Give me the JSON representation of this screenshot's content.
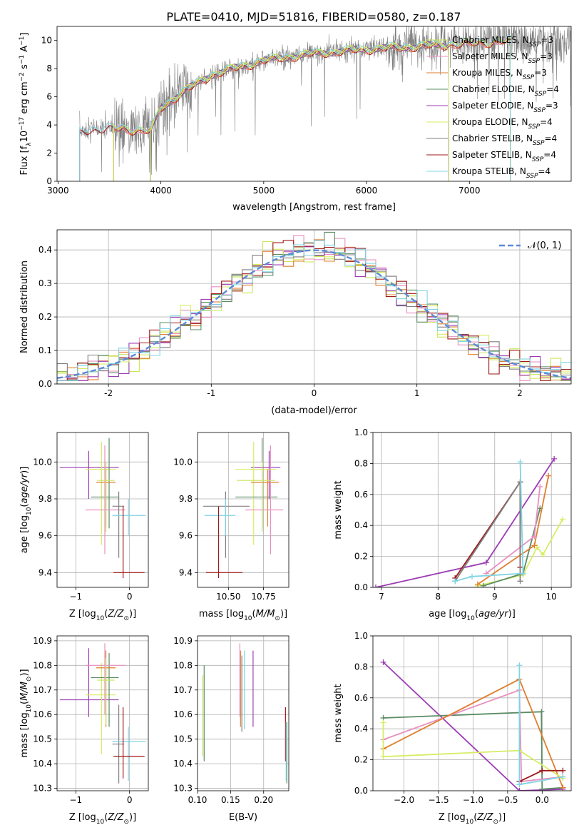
{
  "figure_title": "PLATE=0410, MJD=51816, FIBERID=0580, z=0.187",
  "colors": {
    "chabrier_miles": "#c8e65a",
    "salpeter_miles": "#e88fc0",
    "kroupa_miles": "#e07e2e",
    "chabrier_elodie": "#5a8c64",
    "salpeter_elodie": "#9c3cb4",
    "kroupa_elodie": "#d8ec64",
    "chabrier_stelib": "#7f7f7f",
    "salpeter_stelib": "#a01818",
    "kroupa_stelib": "#80d4e4",
    "gaussian": "#5a8ad8"
  },
  "chart_data": [
    {
      "id": "spectrum",
      "type": "line",
      "xlabel": "wavelength [Angstrom, rest frame]",
      "ylabel": "Flux [f",
      "xlim": [
        2990,
        7990
      ],
      "ylim": [
        0,
        11
      ],
      "xticks": [
        3000,
        4000,
        5000,
        6000,
        7000
      ],
      "yticks": [
        0,
        2,
        4,
        6,
        8,
        10
      ],
      "grid": false,
      "legend_position": "top-right",
      "legend": [
        {
          "key": "chabrier_stelib_line",
          "label": "Chabrier MILES, N",
          "sub": "SSP",
          "suffix": "=3",
          "color": "chabrier_miles"
        },
        {
          "key": "salpeter_miles",
          "label": "Salpeter MILES, N",
          "sub": "SSP",
          "suffix": "=3",
          "color": "salpeter_miles"
        },
        {
          "key": "kroupa_miles",
          "label": "Kroupa MILES, N",
          "sub": "SSP",
          "suffix": "=3",
          "color": "kroupa_miles"
        },
        {
          "key": "chabrier_elodie",
          "label": "Chabrier ELODIE, N",
          "sub": "SSP",
          "suffix": "=4",
          "color": "chabrier_elodie"
        },
        {
          "key": "salpeter_elodie",
          "label": "Salpeter ELODIE, N",
          "sub": "SSP",
          "suffix": "=3",
          "color": "salpeter_elodie"
        },
        {
          "key": "kroupa_elodie",
          "label": "Kroupa ELODIE, N",
          "sub": "SSP",
          "suffix": "=4",
          "color": "kroupa_elodie"
        },
        {
          "key": "chabrier_stelib",
          "label": "Chabrier STELIB, N",
          "sub": "SSP",
          "suffix": "=4",
          "color": "chabrier_stelib"
        },
        {
          "key": "salpeter_stelib",
          "label": "Salpeter STELIB, N",
          "sub": "SSP",
          "suffix": "=4",
          "color": "salpeter_stelib"
        },
        {
          "key": "kroupa_stelib",
          "label": "Kroupa STELIB, N",
          "sub": "SSP",
          "suffix": "=4",
          "color": "kroupa_stelib"
        }
      ],
      "continuum_points": [
        [
          3210,
          3.5
        ],
        [
          3300,
          3.7
        ],
        [
          3500,
          3.8
        ],
        [
          3700,
          3.7
        ],
        [
          3900,
          3.6
        ],
        [
          4000,
          5.2
        ],
        [
          4200,
          6.3
        ],
        [
          4500,
          7.6
        ],
        [
          5000,
          8.6
        ],
        [
          5500,
          9.1
        ],
        [
          6000,
          9.4
        ],
        [
          6500,
          9.6
        ],
        [
          7000,
          9.8
        ],
        [
          7400,
          10.0
        ],
        [
          7990,
          10.0
        ]
      ],
      "model_ranges": {
        "chabrier_miles": [
          3540,
          7400
        ],
        "salpeter_miles": [
          3540,
          7400
        ],
        "kroupa_miles": [
          3540,
          7400
        ],
        "chabrier_elodie": [
          3900,
          6800
        ],
        "salpeter_elodie": [
          3900,
          6800
        ],
        "kroupa_elodie": [
          3900,
          6800
        ],
        "chabrier_stelib": [
          3210,
          7990
        ],
        "salpeter_stelib": [
          3210,
          7400
        ],
        "kroupa_stelib": [
          3210,
          7400
        ]
      }
    },
    {
      "id": "residuals",
      "type": "histogram",
      "xlabel": "(data-model)/error",
      "ylabel": "Normed distribution",
      "xlim": [
        -2.5,
        2.5
      ],
      "ylim": [
        0,
        0.46
      ],
      "xticks": [
        -2,
        -1,
        0,
        1,
        2
      ],
      "yticks": [
        0.0,
        0.1,
        0.2,
        0.3,
        0.4
      ],
      "grid": true,
      "legend_position": "top-right",
      "gaussian_label": "𝒩(0, 1)",
      "bin_width": 0.1
    },
    {
      "id": "age_vs_Z",
      "type": "errorbar",
      "xlabel": "Z [log",
      "ylabel": "age  [log",
      "xlim": [
        -1.35,
        0.35
      ],
      "ylim": [
        9.32,
        10.16
      ],
      "xticks": [
        -1,
        0
      ],
      "xticklabels": [
        "−1",
        "0"
      ],
      "yticks": [
        9.4,
        9.6,
        9.8,
        10.0
      ],
      "grid": true,
      "points": [
        {
          "color": "salpeter_elodie",
          "x": -0.76,
          "xlo": -1.3,
          "xhi": -0.2,
          "y": 9.97,
          "ylo": 9.8,
          "yhi": 10.06
        },
        {
          "color": "kroupa_elodie",
          "x": -0.52,
          "xlo": -0.82,
          "xhi": -0.26,
          "y": 9.96,
          "ylo": 9.55,
          "yhi": 10.11
        },
        {
          "color": "chabrier_elodie",
          "x": -0.38,
          "xlo": -0.72,
          "xhi": -0.2,
          "y": 9.81,
          "ylo": 9.64,
          "yhi": 10.13
        },
        {
          "color": "kroupa_miles",
          "x": -0.44,
          "xlo": -0.62,
          "xhi": -0.26,
          "y": 9.89,
          "ylo": 9.65,
          "yhi": 9.96
        },
        {
          "color": "salpeter_miles",
          "x": -0.46,
          "xlo": -0.82,
          "xhi": -0.08,
          "y": 9.74,
          "ylo": 9.5,
          "yhi": 10.09
        },
        {
          "color": "chabrier_miles",
          "x": -0.44,
          "xlo": -0.6,
          "xhi": -0.28,
          "y": 9.9,
          "ylo": 9.62,
          "yhi": 10.0
        },
        {
          "color": "chabrier_stelib",
          "x": -0.2,
          "xlo": -0.32,
          "xhi": -0.1,
          "y": 9.76,
          "ylo": 9.48,
          "yhi": 9.84
        },
        {
          "color": "kroupa_stelib",
          "x": -0.02,
          "xlo": -0.32,
          "xhi": 0.3,
          "y": 9.71,
          "ylo": 9.6,
          "yhi": 9.8
        },
        {
          "color": "salpeter_stelib",
          "x": -0.12,
          "xlo": -0.3,
          "xhi": 0.28,
          "y": 9.4,
          "ylo": 9.37,
          "yhi": 9.76
        }
      ]
    },
    {
      "id": "age_vs_mass",
      "type": "errorbar",
      "xlabel": "mass [log",
      "xlim": [
        10.28,
        10.93
      ],
      "ylim": [
        9.32,
        10.16
      ],
      "xticks": [
        10.5,
        10.75
      ],
      "xticklabels": [
        "10.50",
        "10.75"
      ],
      "yticks": [
        9.4,
        9.6,
        9.8,
        10.0
      ],
      "grid": true,
      "points": [
        {
          "color": "salpeter_elodie",
          "x": 10.79,
          "xlo": 10.66,
          "xhi": 10.87,
          "y": 9.97,
          "ylo": 9.8,
          "yhi": 10.06
        },
        {
          "color": "kroupa_elodie",
          "x": 10.68,
          "xlo": 10.55,
          "xhi": 10.84,
          "y": 9.96,
          "ylo": 9.55,
          "yhi": 10.11
        },
        {
          "color": "chabrier_elodie",
          "x": 10.74,
          "xlo": 10.55,
          "xhi": 10.85,
          "y": 9.81,
          "ylo": 9.64,
          "yhi": 10.13
        },
        {
          "color": "kroupa_miles",
          "x": 10.78,
          "xlo": 10.66,
          "xhi": 10.86,
          "y": 9.89,
          "ylo": 9.65,
          "yhi": 9.96
        },
        {
          "color": "salpeter_miles",
          "x": 10.8,
          "xlo": 10.62,
          "xhi": 10.89,
          "y": 9.74,
          "ylo": 9.5,
          "yhi": 10.09
        },
        {
          "color": "chabrier_miles",
          "x": 10.74,
          "xlo": 10.56,
          "xhi": 10.83,
          "y": 9.9,
          "ylo": 9.62,
          "yhi": 10.0
        },
        {
          "color": "chabrier_stelib",
          "x": 10.48,
          "xlo": 10.32,
          "xhi": 10.65,
          "y": 9.76,
          "ylo": 9.48,
          "yhi": 9.84
        },
        {
          "color": "kroupa_stelib",
          "x": 10.48,
          "xlo": 10.33,
          "xhi": 10.55,
          "y": 9.71,
          "ylo": 9.6,
          "yhi": 9.8
        },
        {
          "color": "salpeter_stelib",
          "x": 10.43,
          "xlo": 10.34,
          "xhi": 10.6,
          "y": 9.4,
          "ylo": 9.37,
          "yhi": 9.76
        }
      ]
    },
    {
      "id": "weight_vs_age",
      "type": "line",
      "xlabel": "age  [log",
      "ylabel": "mass weight",
      "xlim": [
        6.85,
        10.35
      ],
      "ylim": [
        0,
        1
      ],
      "xticks": [
        7,
        8,
        9,
        10
      ],
      "yticks": [
        0.0,
        0.2,
        0.4,
        0.6,
        0.8,
        1.0
      ],
      "grid": true,
      "series": [
        {
          "color": "salpeter_elodie",
          "points": [
            [
              6.9,
              0.0
            ],
            [
              8.85,
              0.16
            ],
            [
              10.05,
              0.83
            ]
          ]
        },
        {
          "color": "kroupa_elodie",
          "points": [
            [
              8.7,
              0.01
            ],
            [
              9.5,
              0.08
            ],
            [
              9.75,
              0.26
            ],
            [
              9.85,
              0.21
            ],
            [
              10.2,
              0.44
            ]
          ]
        },
        {
          "color": "chabrier_elodie",
          "points": [
            [
              8.8,
              0.01
            ],
            [
              9.5,
              0.09
            ],
            [
              9.8,
              0.51
            ]
          ]
        },
        {
          "color": "kroupa_miles",
          "points": [
            [
              8.7,
              0.02
            ],
            [
              9.7,
              0.27
            ],
            [
              9.95,
              0.72
            ]
          ]
        },
        {
          "color": "salpeter_miles",
          "points": [
            [
              8.85,
              0.09
            ],
            [
              9.7,
              0.33
            ],
            [
              9.8,
              0.65
            ]
          ]
        },
        {
          "color": "salpeter_stelib",
          "points": [
            [
              8.3,
              0.06
            ],
            [
              9.45,
              0.68
            ],
            [
              9.45,
              0.13
            ]
          ]
        },
        {
          "color": "chabrier_stelib",
          "points": [
            [
              8.3,
              0.04
            ],
            [
              9.45,
              0.68
            ],
            [
              9.45,
              0.04
            ]
          ]
        },
        {
          "color": "kroupa_stelib",
          "points": [
            [
              8.3,
              0.04
            ],
            [
              8.6,
              0.07
            ],
            [
              9.5,
              0.09
            ],
            [
              9.45,
              0.81
            ]
          ]
        }
      ]
    },
    {
      "id": "mass_vs_Z",
      "type": "errorbar",
      "xlabel": "Z [log",
      "ylabel": "mass [log",
      "xlim": [
        -1.35,
        0.35
      ],
      "ylim": [
        10.29,
        10.92
      ],
      "xticks": [
        -1,
        0
      ],
      "xticklabels": [
        "−1",
        "0"
      ],
      "yticks": [
        10.3,
        10.4,
        10.5,
        10.6,
        10.7,
        10.8,
        10.9
      ],
      "grid": true,
      "points": [
        {
          "color": "salpeter_elodie",
          "x": -0.76,
          "xlo": -1.3,
          "xhi": -0.2,
          "y": 10.66,
          "ylo": 10.59,
          "yhi": 10.87
        },
        {
          "color": "kroupa_elodie",
          "x": -0.52,
          "xlo": -0.82,
          "xhi": -0.26,
          "y": 10.68,
          "ylo": 10.44,
          "yhi": 10.81
        },
        {
          "color": "chabrier_elodie",
          "x": -0.38,
          "xlo": -0.72,
          "xhi": -0.2,
          "y": 10.75,
          "ylo": 10.55,
          "yhi": 10.85
        },
        {
          "color": "kroupa_miles",
          "x": -0.44,
          "xlo": -0.62,
          "xhi": -0.26,
          "y": 10.79,
          "ylo": 10.55,
          "yhi": 10.86
        },
        {
          "color": "salpeter_miles",
          "x": -0.46,
          "xlo": -0.82,
          "xhi": -0.08,
          "y": 10.8,
          "ylo": 10.6,
          "yhi": 10.89
        },
        {
          "color": "chabrier_miles",
          "x": -0.44,
          "xlo": -0.6,
          "xhi": -0.28,
          "y": 10.74,
          "ylo": 10.56,
          "yhi": 10.83
        },
        {
          "color": "chabrier_stelib",
          "x": -0.2,
          "xlo": -0.32,
          "xhi": -0.1,
          "y": 10.48,
          "ylo": 10.32,
          "yhi": 10.64
        },
        {
          "color": "kroupa_stelib",
          "x": -0.02,
          "xlo": -0.32,
          "xhi": 0.3,
          "y": 10.49,
          "ylo": 10.33,
          "yhi": 10.55
        },
        {
          "color": "salpeter_stelib",
          "x": -0.12,
          "xlo": -0.3,
          "xhi": 0.28,
          "y": 10.43,
          "ylo": 10.34,
          "yhi": 10.63
        }
      ]
    },
    {
      "id": "mass_vs_ebv",
      "type": "errorbar",
      "xlabel": "E(B-V)",
      "xlim": [
        0.1,
        0.238
      ],
      "ylim": [
        10.29,
        10.92
      ],
      "xticks": [
        0.1,
        0.15,
        0.2
      ],
      "xticklabels": [
        "0.10",
        "0.15",
        "0.20"
      ],
      "yticks": [
        10.3,
        10.4,
        10.5,
        10.6,
        10.7,
        10.8,
        10.9
      ],
      "grid": true,
      "points": [
        {
          "color": "chabrier_miles",
          "x": 0.108,
          "y": 10.6,
          "ylo": 10.43,
          "yhi": 10.76
        },
        {
          "color": "chabrier_elodie",
          "x": 0.11,
          "y": 10.6,
          "ylo": 10.41,
          "yhi": 10.8
        },
        {
          "color": "kroupa_miles",
          "x": 0.165,
          "y": 10.68,
          "ylo": 10.55,
          "yhi": 10.86
        },
        {
          "color": "salpeter_miles",
          "x": 0.164,
          "y": 10.74,
          "ylo": 10.59,
          "yhi": 10.89
        },
        {
          "color": "chabrier_stelib",
          "x": 0.167,
          "y": 10.7,
          "ylo": 10.53,
          "yhi": 10.84
        },
        {
          "color": "kroupa_stelib",
          "x": 0.171,
          "y": 10.7,
          "ylo": 10.54,
          "yhi": 10.86
        },
        {
          "color": "salpeter_elodie",
          "x": 0.184,
          "y": 10.7,
          "ylo": 10.55,
          "yhi": 10.86
        },
        {
          "color": "salpeter_stelib",
          "x": 0.233,
          "y": 10.52,
          "ylo": 10.41,
          "yhi": 10.63
        },
        {
          "color": "chabrier_elodie",
          "x": 0.235,
          "y": 10.45,
          "ylo": 10.32,
          "yhi": 10.57
        },
        {
          "color": "kroupa_stelib",
          "x": 0.234,
          "y": 10.45,
          "ylo": 10.33,
          "yhi": 10.57
        }
      ]
    },
    {
      "id": "weight_vs_Z",
      "type": "line",
      "xlabel": "Z [log",
      "ylabel": "mass weight",
      "xlim": [
        -2.45,
        0.42
      ],
      "ylim": [
        0,
        1
      ],
      "xticks": [
        -2.0,
        -1.5,
        -1.0,
        -0.5,
        0.0
      ],
      "xticklabels": [
        "−2.0",
        "−1.5",
        "−1.0",
        "−0.5",
        "0.0"
      ],
      "yticks": [
        0.0,
        0.2,
        0.4,
        0.6,
        0.8,
        1.0
      ],
      "grid": true,
      "series": [
        {
          "color": "salpeter_elodie",
          "points": [
            [
              -2.3,
              0.83
            ],
            [
              -0.33,
              0.0
            ],
            [
              0.3,
              0.01
            ]
          ]
        },
        {
          "color": "chabrier_elodie",
          "points": [
            [
              -2.3,
              0.47
            ],
            [
              -0.01,
              0.51
            ],
            [
              0.0,
              0.01
            ],
            [
              0.3,
              0.02
            ]
          ]
        },
        {
          "color": "salpeter_miles",
          "points": [
            [
              -2.3,
              0.33
            ],
            [
              -0.33,
              0.65
            ],
            [
              -0.3,
              0.06
            ],
            [
              0.3,
              0.09
            ]
          ]
        },
        {
          "color": "kroupa_miles",
          "points": [
            [
              -2.3,
              0.27
            ],
            [
              -0.33,
              0.72
            ],
            [
              0.3,
              0.02
            ]
          ]
        },
        {
          "color": "kroupa_elodie",
          "points": [
            [
              -2.3,
              0.44
            ],
            [
              -2.3,
              0.22
            ],
            [
              -0.33,
              0.26
            ],
            [
              0.3,
              0.08
            ]
          ]
        },
        {
          "color": "salpeter_stelib",
          "points": [
            [
              -0.33,
              0.06
            ],
            [
              0.0,
              0.13
            ],
            [
              0.3,
              0.13
            ]
          ]
        },
        {
          "color": "kroupa_stelib",
          "points": [
            [
              -0.33,
              0.81
            ],
            [
              -0.33,
              0.04
            ],
            [
              0.3,
              0.09
            ]
          ]
        }
      ]
    }
  ]
}
